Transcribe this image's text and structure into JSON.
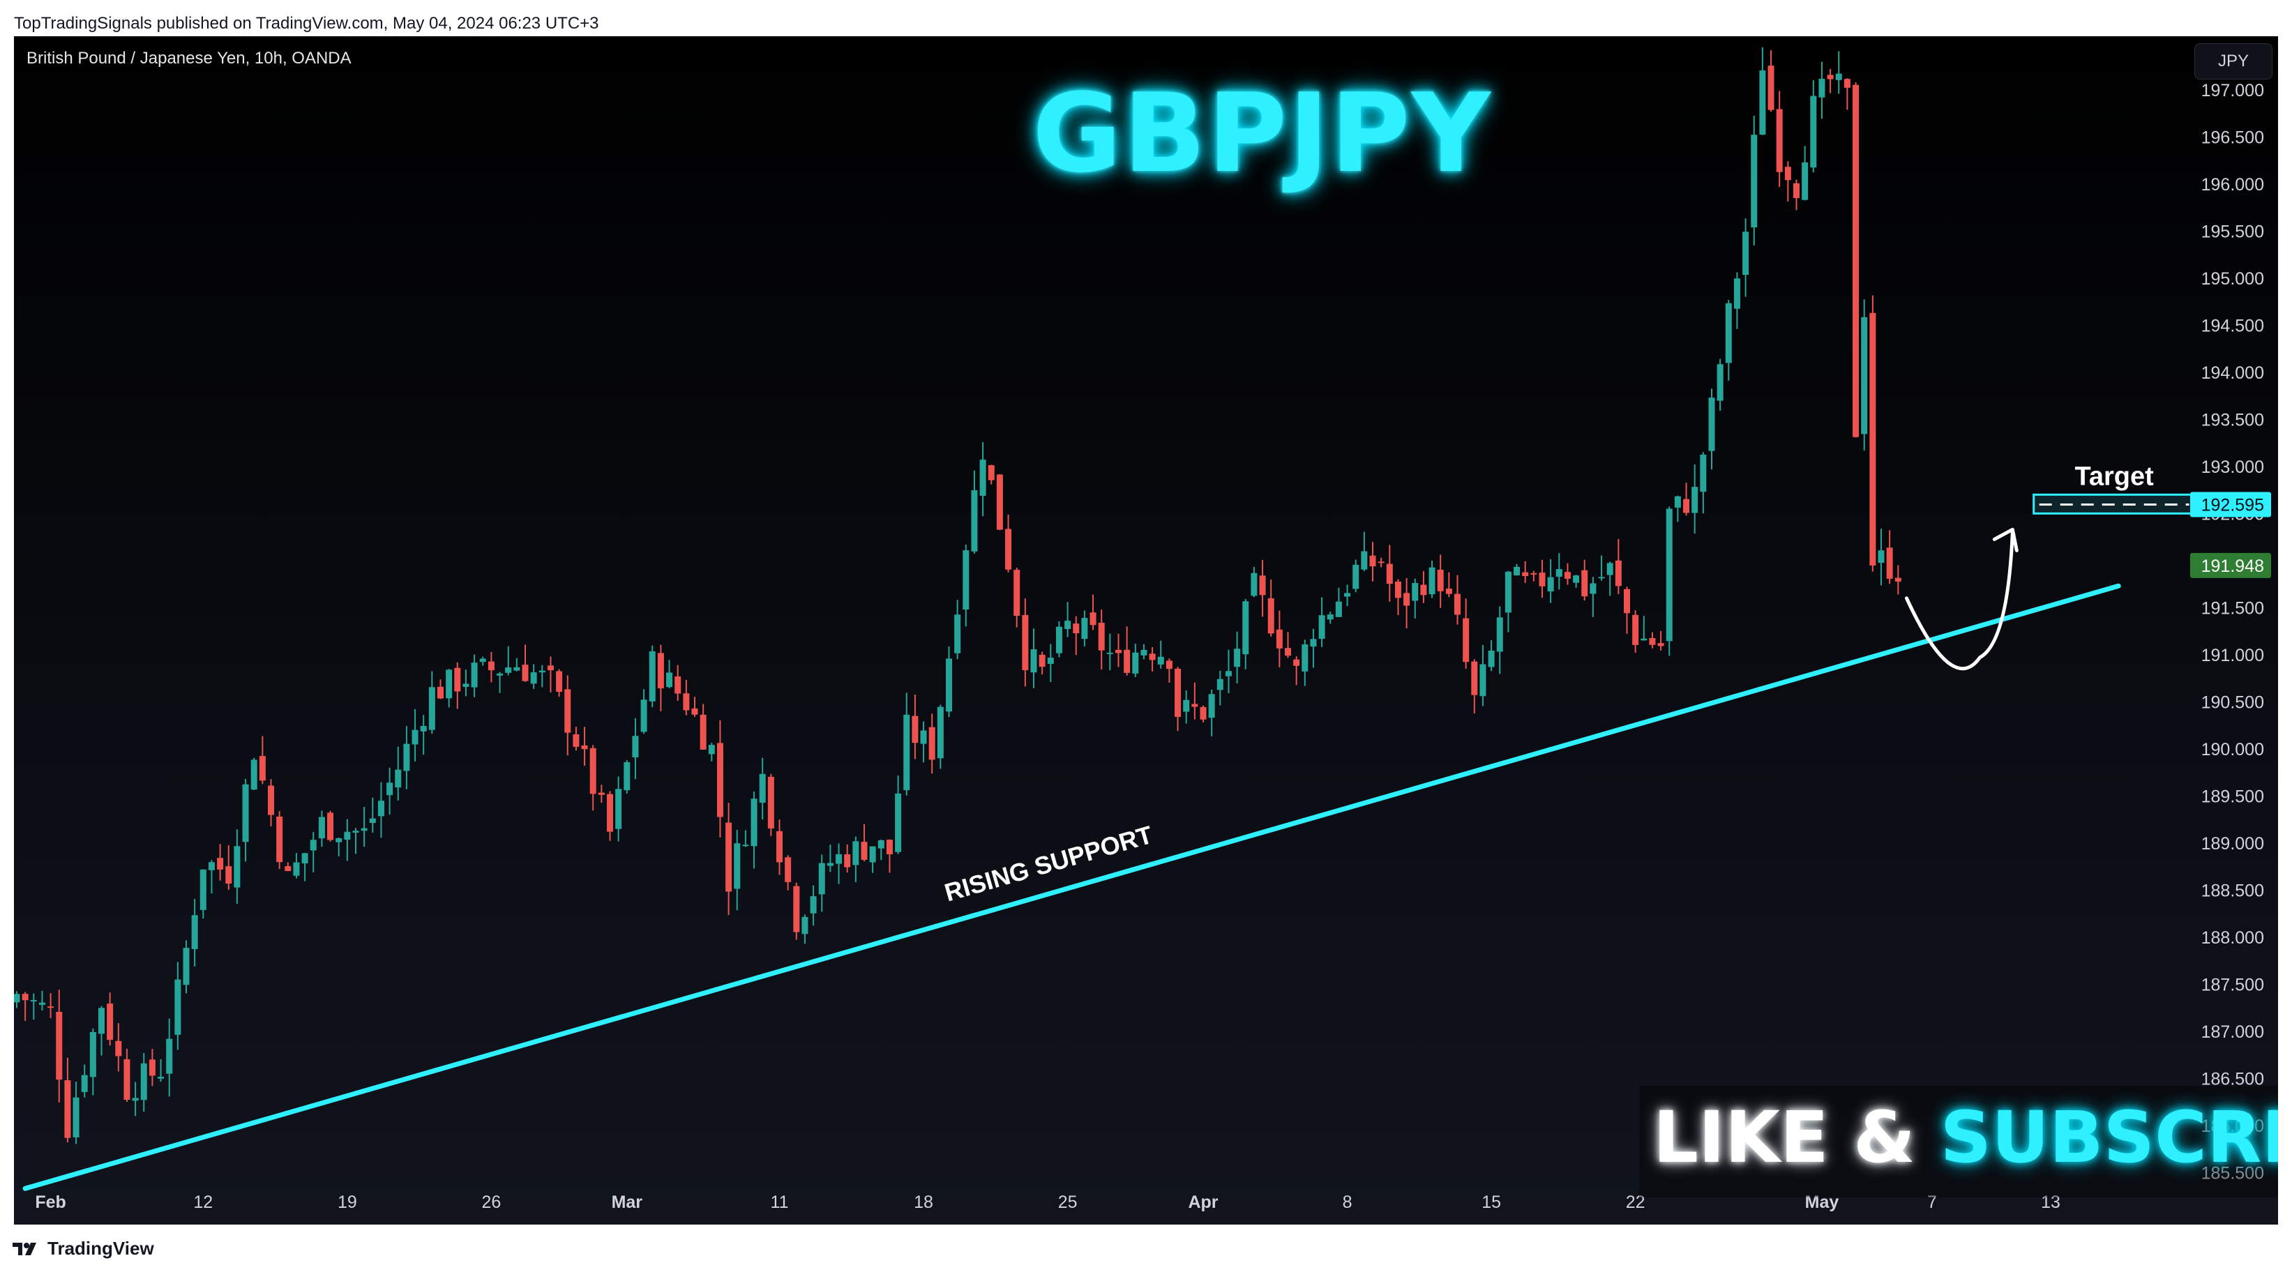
{
  "published_line": "TopTradingSignals published on TradingView.com, May 04, 2024 06:23 UTC+3",
  "symbol_line": "British Pound / Japanese Yen, 10h, OANDA",
  "currency_button": "JPY",
  "headline": "GBPJPY",
  "cta": {
    "like": "LIKE &",
    "subscribe": "SUBSCRIBE"
  },
  "footer_brand": "TradingView",
  "colors": {
    "up": "#26a69a",
    "down": "#ef5350",
    "accent": "#2ff0ff",
    "support": "#2ff0ff",
    "last_price_bg": "#2e7d32"
  },
  "chart_data": {
    "type": "candlestick",
    "ylim": [
      185.08,
      197.45
    ],
    "y_ticks": [
      "185.500",
      "186.000",
      "186.500",
      "187.000",
      "187.500",
      "188.000",
      "188.500",
      "189.000",
      "189.500",
      "190.000",
      "190.500",
      "191.000",
      "191.500",
      "192.000",
      "192.500",
      "193.000",
      "193.500",
      "194.000",
      "194.500",
      "195.000",
      "195.500",
      "196.000",
      "196.500",
      "197.000"
    ],
    "x_ticks": [
      {
        "label": "Feb",
        "bold": true,
        "bar": 4
      },
      {
        "label": "12",
        "bold": false,
        "bar": 22
      },
      {
        "label": "19",
        "bold": false,
        "bar": 39
      },
      {
        "label": "26",
        "bold": false,
        "bar": 56
      },
      {
        "label": "Mar",
        "bold": true,
        "bar": 72
      },
      {
        "label": "11",
        "bold": false,
        "bar": 90
      },
      {
        "label": "18",
        "bold": false,
        "bar": 107
      },
      {
        "label": "25",
        "bold": false,
        "bar": 124
      },
      {
        "label": "Apr",
        "bold": true,
        "bar": 140
      },
      {
        "label": "8",
        "bold": false,
        "bar": 157
      },
      {
        "label": "15",
        "bold": false,
        "bar": 174
      },
      {
        "label": "22",
        "bold": false,
        "bar": 191
      },
      {
        "label": "May",
        "bold": true,
        "bar": 213
      },
      {
        "label": "7",
        "bold": false,
        "bar": 226
      },
      {
        "label": "13",
        "bold": false,
        "bar": 240
      }
    ],
    "waypoints": [
      [
        0,
        187.4
      ],
      [
        4,
        187.2
      ],
      [
        6,
        186.0
      ],
      [
        10,
        187.3
      ],
      [
        13,
        186.4
      ],
      [
        17,
        186.6
      ],
      [
        19,
        187.4
      ],
      [
        22,
        188.8
      ],
      [
        25,
        188.7
      ],
      [
        28,
        190.0
      ],
      [
        32,
        188.6
      ],
      [
        36,
        189.2
      ],
      [
        41,
        189.1
      ],
      [
        45,
        189.8
      ],
      [
        49,
        190.6
      ],
      [
        54,
        190.8
      ],
      [
        59,
        190.9
      ],
      [
        63,
        190.7
      ],
      [
        66,
        190.1
      ],
      [
        70,
        189.1
      ],
      [
        75,
        190.9
      ],
      [
        79,
        190.5
      ],
      [
        82,
        190.0
      ],
      [
        84,
        188.6
      ],
      [
        88,
        189.7
      ],
      [
        92,
        188.2
      ],
      [
        96,
        188.8
      ],
      [
        101,
        189.0
      ],
      [
        103,
        188.9
      ],
      [
        105,
        190.2
      ],
      [
        108,
        190.0
      ],
      [
        110,
        191.0
      ],
      [
        112,
        192.2
      ],
      [
        114,
        193.2
      ],
      [
        117,
        192.0
      ],
      [
        119,
        191.0
      ],
      [
        121,
        190.8
      ],
      [
        124,
        191.3
      ],
      [
        127,
        191.2
      ],
      [
        130,
        190.9
      ],
      [
        133,
        191.1
      ],
      [
        136,
        191.0
      ],
      [
        137,
        190.4
      ],
      [
        140,
        190.4
      ],
      [
        143,
        190.8
      ],
      [
        146,
        191.7
      ],
      [
        149,
        191.2
      ],
      [
        151,
        190.8
      ],
      [
        153,
        191.3
      ],
      [
        156,
        191.6
      ],
      [
        158,
        191.9
      ],
      [
        161,
        192.0
      ],
      [
        163,
        191.5
      ],
      [
        166,
        191.8
      ],
      [
        168,
        191.8
      ],
      [
        170,
        191.3
      ],
      [
        172,
        190.5
      ],
      [
        174,
        191.0
      ],
      [
        176,
        191.8
      ],
      [
        179,
        191.7
      ],
      [
        182,
        192.0
      ],
      [
        185,
        191.7
      ],
      [
        188,
        191.9
      ],
      [
        191,
        191.2
      ],
      [
        194,
        191.1
      ],
      [
        195,
        192.5
      ],
      [
        198,
        192.7
      ],
      [
        200,
        193.6
      ],
      [
        202,
        194.6
      ],
      [
        204,
        195.5
      ],
      [
        206,
        197.3
      ],
      [
        208,
        196.3
      ],
      [
        210,
        196.0
      ],
      [
        212,
        196.8
      ],
      [
        214,
        197.1
      ],
      [
        216,
        196.9
      ],
      [
        217,
        193.4
      ],
      [
        218,
        194.7
      ],
      [
        219,
        192.0
      ],
      [
        220,
        192.0
      ],
      [
        222,
        191.9
      ]
    ],
    "last_price": "191.948",
    "annotations": {
      "support_label": "RISING SUPPORT",
      "target_label": "Target",
      "target_price": "192.595",
      "support_line": {
        "from": {
          "bar": 1,
          "price": 185.33
        },
        "to": {
          "bar": 248,
          "price": 191.73
        }
      },
      "target_box": {
        "from_bar": 238,
        "to_bar": 257,
        "low": 192.5,
        "high": 192.7
      }
    }
  }
}
